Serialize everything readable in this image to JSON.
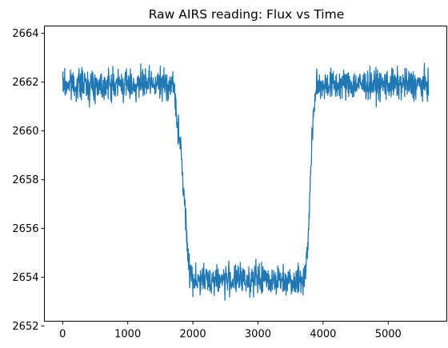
{
  "chart_data": {
    "type": "line",
    "title": "Raw AIRS reading: Flux vs Time",
    "xlabel": "",
    "ylabel": "",
    "xlim": [
      -280,
      5900
    ],
    "ylim": [
      2652.2,
      2664.3
    ],
    "xticks": [
      0,
      1000,
      2000,
      3000,
      4000,
      5000
    ],
    "yticks": [
      2652,
      2654,
      2656,
      2658,
      2660,
      2662,
      2664
    ],
    "grid": false,
    "legend": "none",
    "series": [
      {
        "color": "#1f77b4",
        "x_range": [
          0,
          5620
        ],
        "profile": [
          {
            "x": 0,
            "y": 2661.9
          },
          {
            "x": 1700,
            "y": 2661.9
          },
          {
            "x": 1760,
            "y": 2660.5
          },
          {
            "x": 1820,
            "y": 2659.0
          },
          {
            "x": 1880,
            "y": 2656.8
          },
          {
            "x": 1920,
            "y": 2655.0
          },
          {
            "x": 1960,
            "y": 2654.2
          },
          {
            "x": 2000,
            "y": 2653.9
          },
          {
            "x": 3700,
            "y": 2653.9
          },
          {
            "x": 3760,
            "y": 2655.0
          },
          {
            "x": 3800,
            "y": 2657.5
          },
          {
            "x": 3840,
            "y": 2660.3
          },
          {
            "x": 3880,
            "y": 2661.5
          },
          {
            "x": 3920,
            "y": 2661.9
          },
          {
            "x": 5620,
            "y": 2661.9
          }
        ],
        "noise_amplitude": 0.55
      }
    ]
  }
}
